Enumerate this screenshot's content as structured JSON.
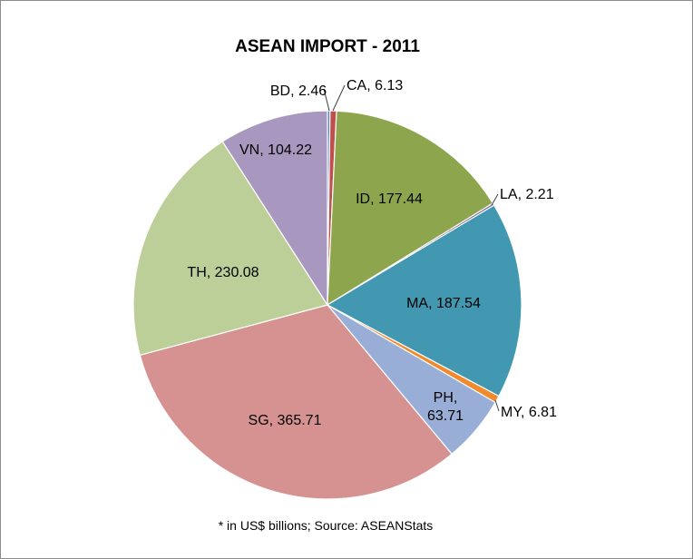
{
  "chart_data": {
    "type": "pie",
    "title": "ASEAN IMPORT - 2011",
    "footnote": "* in US$ billions; Source: ASEANStats",
    "slices": [
      {
        "label": "BD",
        "value": 2.46,
        "display": "BD, 2.46",
        "color": "#4f81bd"
      },
      {
        "label": "CA",
        "value": 6.13,
        "display": "CA, 6.13",
        "color": "#c0504d"
      },
      {
        "label": "ID",
        "value": 177.44,
        "display": "ID, 177.44",
        "color": "#8da64e"
      },
      {
        "label": "LA",
        "value": 2.21,
        "display": "LA, 2.21",
        "color": "#7b5e9a"
      },
      {
        "label": "MA",
        "value": 187.54,
        "display": "MA, 187.54",
        "color": "#4298b0"
      },
      {
        "label": "MY",
        "value": 6.81,
        "display": "MY, 6.81",
        "color": "#f08a2c"
      },
      {
        "label": "PH",
        "value": 63.71,
        "display": "PH, 63.71",
        "lines": [
          "PH,",
          "63.71"
        ],
        "color": "#98aed6"
      },
      {
        "label": "SG",
        "value": 365.71,
        "display": "SG, 365.71",
        "color": "#d59290"
      },
      {
        "label": "TH",
        "value": 230.08,
        "display": "TH, 230.08",
        "color": "#bccf98"
      },
      {
        "label": "VN",
        "value": 104.22,
        "display": "VN, 104.22",
        "color": "#a897be"
      }
    ]
  }
}
